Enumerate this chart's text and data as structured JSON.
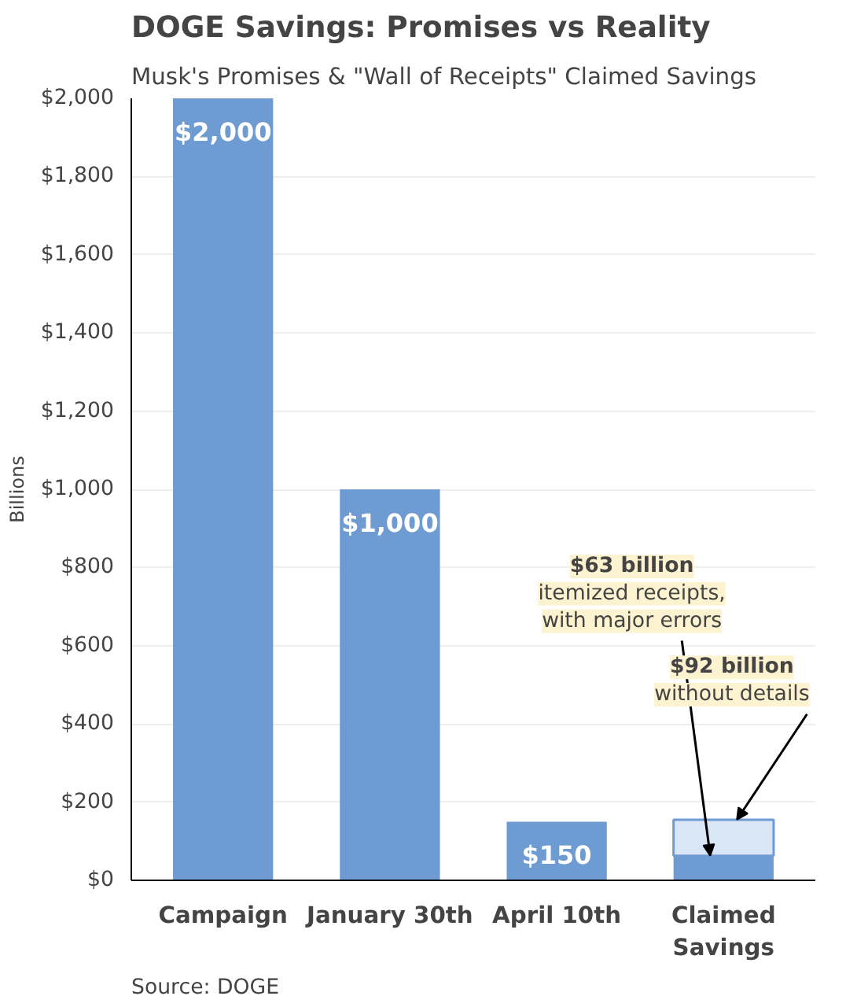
{
  "chart_data": {
    "type": "bar",
    "title": "DOGE Savings: Promises vs Reality",
    "subtitle": "Musk's Promises & \"Wall of Receipts\" Claimed Savings",
    "ylabel": "Billions",
    "categories": [
      "Campaign",
      "January 30th",
      "April 10th",
      "Claimed Savings"
    ],
    "stacked": true,
    "series": [
      {
        "color": "#6f9bd3",
        "values": [
          2000,
          1000,
          150,
          63
        ],
        "value_labels": [
          "$2,000",
          "$1,000",
          "$150",
          null
        ]
      },
      {
        "color": "#d9e6f6",
        "values": [
          null,
          null,
          null,
          92
        ]
      }
    ],
    "ylim": [
      0,
      2000
    ],
    "yticks": [
      {
        "value": 0,
        "label": "$0"
      },
      {
        "value": 200,
        "label": "$200"
      },
      {
        "value": 400,
        "label": "$400"
      },
      {
        "value": 600,
        "label": "$600"
      },
      {
        "value": 800,
        "label": "$800"
      },
      {
        "value": 1000,
        "label": "$1,000"
      },
      {
        "value": 1200,
        "label": "$1,200"
      },
      {
        "value": 1400,
        "label": "$1,400"
      },
      {
        "value": 1600,
        "label": "$1,600"
      },
      {
        "value": 1800,
        "label": "$1,800"
      },
      {
        "value": 2000,
        "label": "$2,000"
      }
    ],
    "grid": "y",
    "annotations": [
      {
        "text": "$63 billion\nitemized receipts,\nwith major errors",
        "x": "Claimed Savings",
        "y": 63
      },
      {
        "text": "$92 billion\nwithout details",
        "x": "Claimed Savings",
        "y": 155
      },
      "Source: DOGE"
    ]
  }
}
